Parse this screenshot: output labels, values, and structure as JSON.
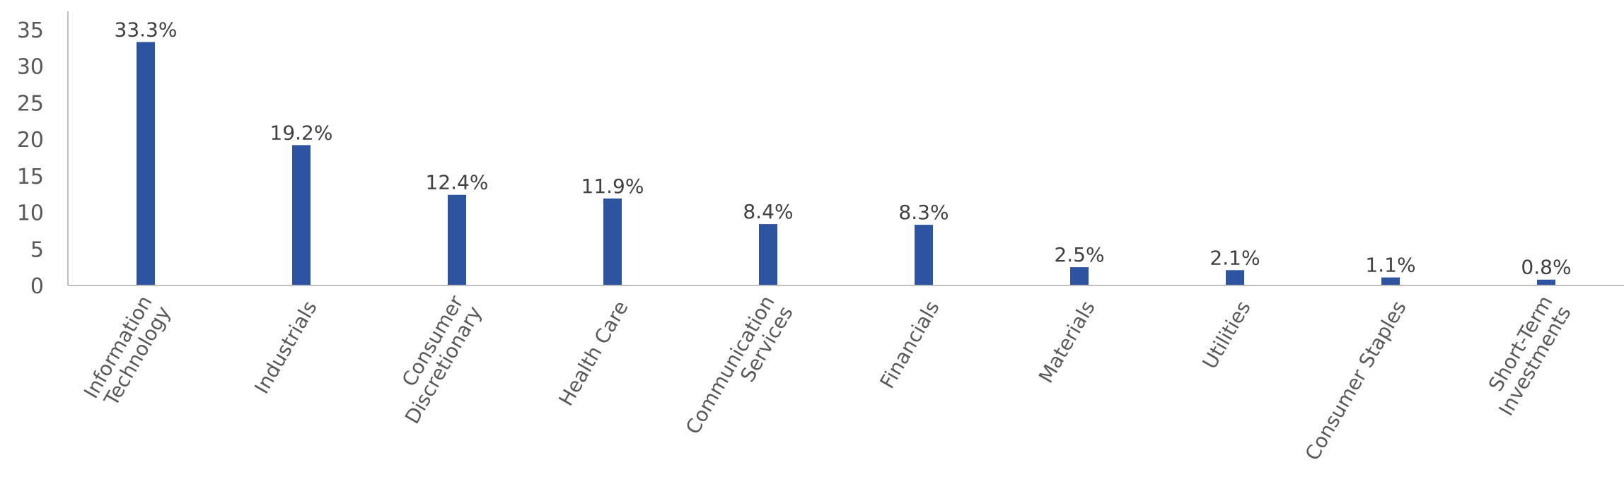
{
  "chart_data": {
    "type": "bar",
    "categories": [
      [
        "Information",
        "Technology"
      ],
      [
        "Industrials"
      ],
      [
        "Consumer",
        "Discretionary"
      ],
      [
        "Health Care"
      ],
      [
        "Communication",
        "Services"
      ],
      [
        "Financials"
      ],
      [
        "Materials"
      ],
      [
        "Utilities"
      ],
      [
        "Consumer Staples"
      ],
      [
        "Short-Term",
        "Investments"
      ]
    ],
    "values": [
      33.3,
      19.2,
      12.4,
      11.9,
      8.4,
      8.3,
      2.5,
      2.1,
      1.1,
      0.8
    ],
    "data_labels": [
      "33.3%",
      "19.2%",
      "12.4%",
      "11.9%",
      "8.4%",
      "8.3%",
      "2.5%",
      "2.1%",
      "1.1%",
      "0.8%"
    ],
    "y_ticks": [
      0,
      5,
      10,
      15,
      20,
      25,
      30,
      35
    ],
    "ylim": [
      0,
      37.5
    ],
    "title": "",
    "xlabel": "",
    "ylabel": "",
    "grid": false,
    "legend": "none",
    "colors": {
      "bar": "#2E54A1",
      "axis": "#BFBFBF",
      "text": "#595959"
    }
  }
}
